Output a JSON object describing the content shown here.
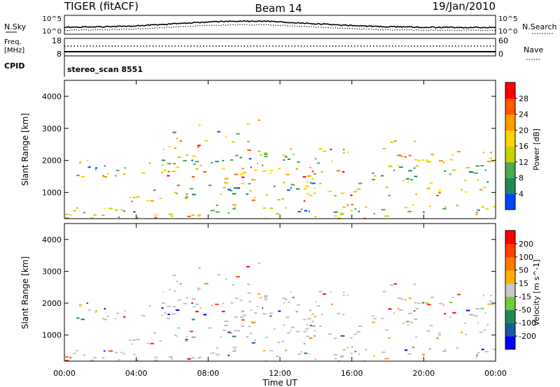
{
  "header": {
    "radar": "TIGER (fitACF)",
    "beam": "Beam 14",
    "date": "19/Jan/2010"
  },
  "top_panels": {
    "nsky_label": "N.Sky",
    "nsearch_label": "N.Search",
    "nsky_ticks": [
      "10^5",
      "10^0"
    ],
    "nsearch_ticks": [
      "10^5",
      "10^0"
    ],
    "freq_label_line1": "Freq.",
    "freq_label_line2": "[MHz]",
    "freq_ticks": [
      "18",
      "8"
    ],
    "nave_label": "Nave",
    "nave_ticks": [
      "60",
      "0"
    ],
    "cpid_label": "CPID",
    "cpid_value": "stereo_scan 8551"
  },
  "chart_data": [
    {
      "type": "heatmap",
      "name": "power",
      "ylabel": "Slant Range [km]",
      "ylim": [
        180,
        4500
      ],
      "yticks": [
        "4000",
        "3000",
        "2000",
        "1000"
      ],
      "colorbar_label": "Power [dB]",
      "colorbar_ticks": [
        "28",
        "24",
        "20",
        "16",
        "12",
        "8",
        "4"
      ],
      "colorbar_colors": [
        "#ff0000",
        "#ff5a00",
        "#ff9a00",
        "#ffd400",
        "#c7d300",
        "#50a850",
        "#1e8a5a",
        "#0046ff"
      ]
    },
    {
      "type": "heatmap",
      "name": "velocity",
      "ylabel": "Slant Range [km]",
      "ylim": [
        180,
        4500
      ],
      "yticks": [
        "4000",
        "3000",
        "2000",
        "1000"
      ],
      "xlabel": "Time UT",
      "xticks": [
        "00:00",
        "04:00",
        "08:00",
        "12:00",
        "16:00",
        "20:00",
        "00:00"
      ],
      "colorbar_label": "Velocity [m s^-1]",
      "colorbar_ticks": [
        "200",
        "100",
        "50",
        "15",
        "-15",
        "-50",
        "-100",
        "-200"
      ],
      "colorbar_colors": [
        "#0000ff",
        "#1a5aa0",
        "#1e8a5a",
        "#6fcc3a",
        "#c8c8c8",
        "#ffb000",
        "#ff7a00",
        "#ff4000",
        "#ff0000"
      ]
    }
  ],
  "colors": {
    "ground_scatter": "#c0c0c0",
    "axis": "#000000",
    "background": "#ffffff"
  }
}
